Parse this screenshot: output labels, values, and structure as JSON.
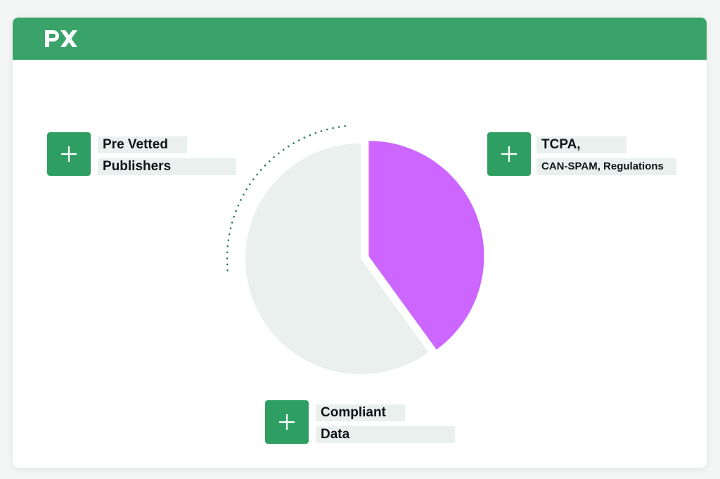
{
  "header": {
    "logo_text": "px",
    "bar_color": "#3aa36a"
  },
  "callouts": [
    {
      "line1": "Pre Vetted",
      "line2": "Publishers",
      "icon": "plus-icon"
    },
    {
      "line1": "TCPA,",
      "line2": "CAN-SPAM, Regulations",
      "icon": "plus-icon"
    },
    {
      "line1": "Compliant",
      "line2": "Data",
      "icon": "plus-icon"
    }
  ],
  "chart_data": {
    "type": "pie",
    "title": "",
    "slices": [
      {
        "label": "TCPA, CAN-SPAM, Regulations",
        "value": 40,
        "color": "#cc66ff"
      },
      {
        "label": "",
        "value": 60,
        "color": "#e9f0ee"
      }
    ],
    "exploded_slice": 0
  },
  "colors": {
    "accent_green": "#2f9e63",
    "dots": "#2b7a58"
  }
}
